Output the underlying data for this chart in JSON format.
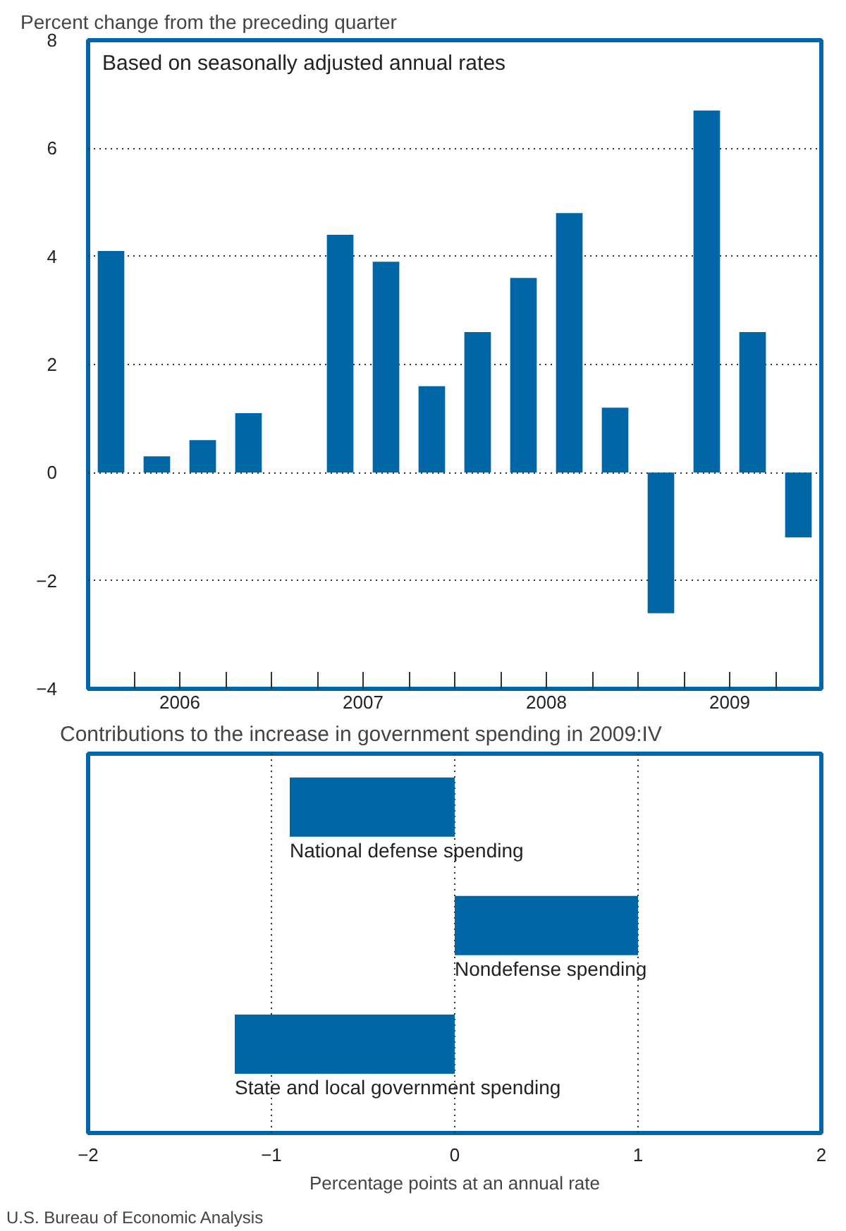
{
  "chart_data": [
    {
      "type": "bar",
      "ylabel": "Percent change from the preceding quarter",
      "annotations": [
        "Based on seasonally adjusted annual rates"
      ],
      "x": [
        2006.125,
        2006.375,
        2006.625,
        2006.875,
        2007.125,
        2007.375,
        2007.625,
        2007.875,
        2008.125,
        2008.375,
        2008.625,
        2008.875,
        2009.125,
        2009.375,
        2009.625,
        2009.875
      ],
      "values": [
        4.1,
        0.3,
        0.6,
        1.1,
        null,
        4.4,
        3.9,
        1.6,
        2.6,
        3.6,
        4.8,
        1.2,
        -2.6,
        6.7,
        2.6,
        -1.2
      ],
      "color": "#0066a6",
      "xlim": [
        2006,
        2010
      ],
      "xticks": [
        {
          "value": 2006.25,
          "label": null
        },
        {
          "value": 2006.5,
          "label": "2006"
        },
        {
          "value": 2006.75,
          "label": null
        },
        {
          "value": 2007,
          "label": null
        },
        {
          "value": 2007.25,
          "label": null
        },
        {
          "value": 2007.5,
          "label": "2007"
        },
        {
          "value": 2007.75,
          "label": null
        },
        {
          "value": 2008,
          "label": null
        },
        {
          "value": 2008.25,
          "label": null
        },
        {
          "value": 2008.5,
          "label": "2008"
        },
        {
          "value": 2008.75,
          "label": null
        },
        {
          "value": 2009,
          "label": null
        },
        {
          "value": 2009.25,
          "label": null
        },
        {
          "value": 2009.5,
          "label": "2009"
        },
        {
          "value": 2009.75,
          "label": null
        }
      ],
      "ylim": [
        -4,
        8
      ],
      "yticks": [
        {
          "value": -4,
          "label": "−4"
        },
        {
          "value": -2,
          "label": "−2"
        },
        0,
        2,
        4,
        6,
        8
      ],
      "grid": "y"
    },
    {
      "type": "bar",
      "orientation": "horizontal",
      "title": "Contributions to the increase in government spending in 2009:IV",
      "xlabel": "Percentage points at an annual rate",
      "annotations": [
        "U.S. Bureau of Economic Analysis"
      ],
      "categories": [
        "National defense spending",
        "Nondefense spending",
        "State and local government spending"
      ],
      "values": [
        -0.9,
        1.0,
        -1.2
      ],
      "color": "#0066a6",
      "xlim": [
        -2,
        2
      ],
      "xticks": [
        {
          "value": -2,
          "label": "−2"
        },
        {
          "value": -1,
          "label": "−1"
        },
        0,
        1,
        2
      ],
      "grid": "x"
    }
  ]
}
